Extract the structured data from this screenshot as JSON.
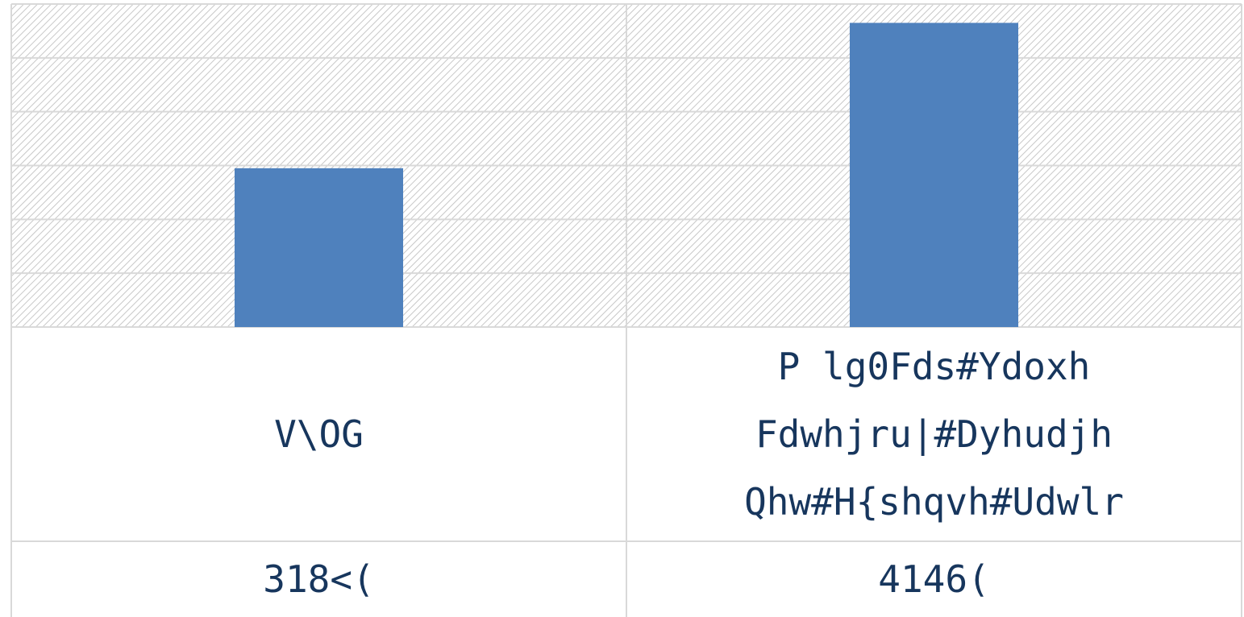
{
  "chart_data": {
    "type": "bar",
    "categories": [
      "V\\OG",
      "P lg0Fds#Ydoxh\nFdwhjru|#Dyhudjh\nQhw#H{shqvh#Udwlr"
    ],
    "values": [
      0.59,
      1.13
    ],
    "value_labels": [
      "318<(",
      "4146("
    ],
    "color": "#4f81bd",
    "ylim": [
      0,
      1.2
    ],
    "yticks": [
      0,
      0.2,
      0.4,
      0.6,
      0.8,
      1,
      1.2
    ],
    "grid": true
  }
}
